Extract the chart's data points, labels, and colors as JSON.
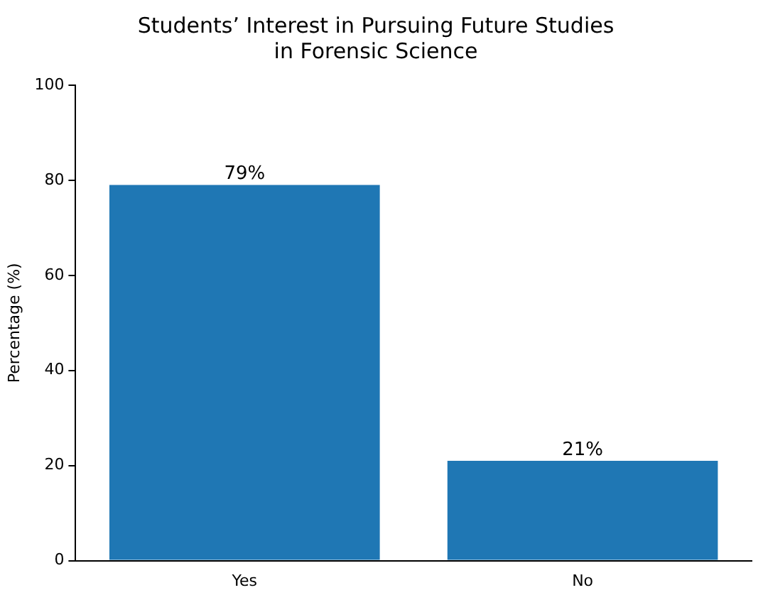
{
  "chart_data": {
    "type": "bar",
    "title": "Students’ Interest in Pursuing Future Studies\nin Forensic Science",
    "ylabel": "Percentage (%)",
    "categories": [
      "Yes",
      "No"
    ],
    "values": [
      79,
      21
    ],
    "color": "#1f77b4",
    "value_labels": [
      "79%",
      "21%"
    ],
    "ylim": [
      0,
      100
    ],
    "yticks": [
      0,
      20,
      40,
      60,
      80,
      100
    ],
    "grid": false,
    "legend": false
  }
}
